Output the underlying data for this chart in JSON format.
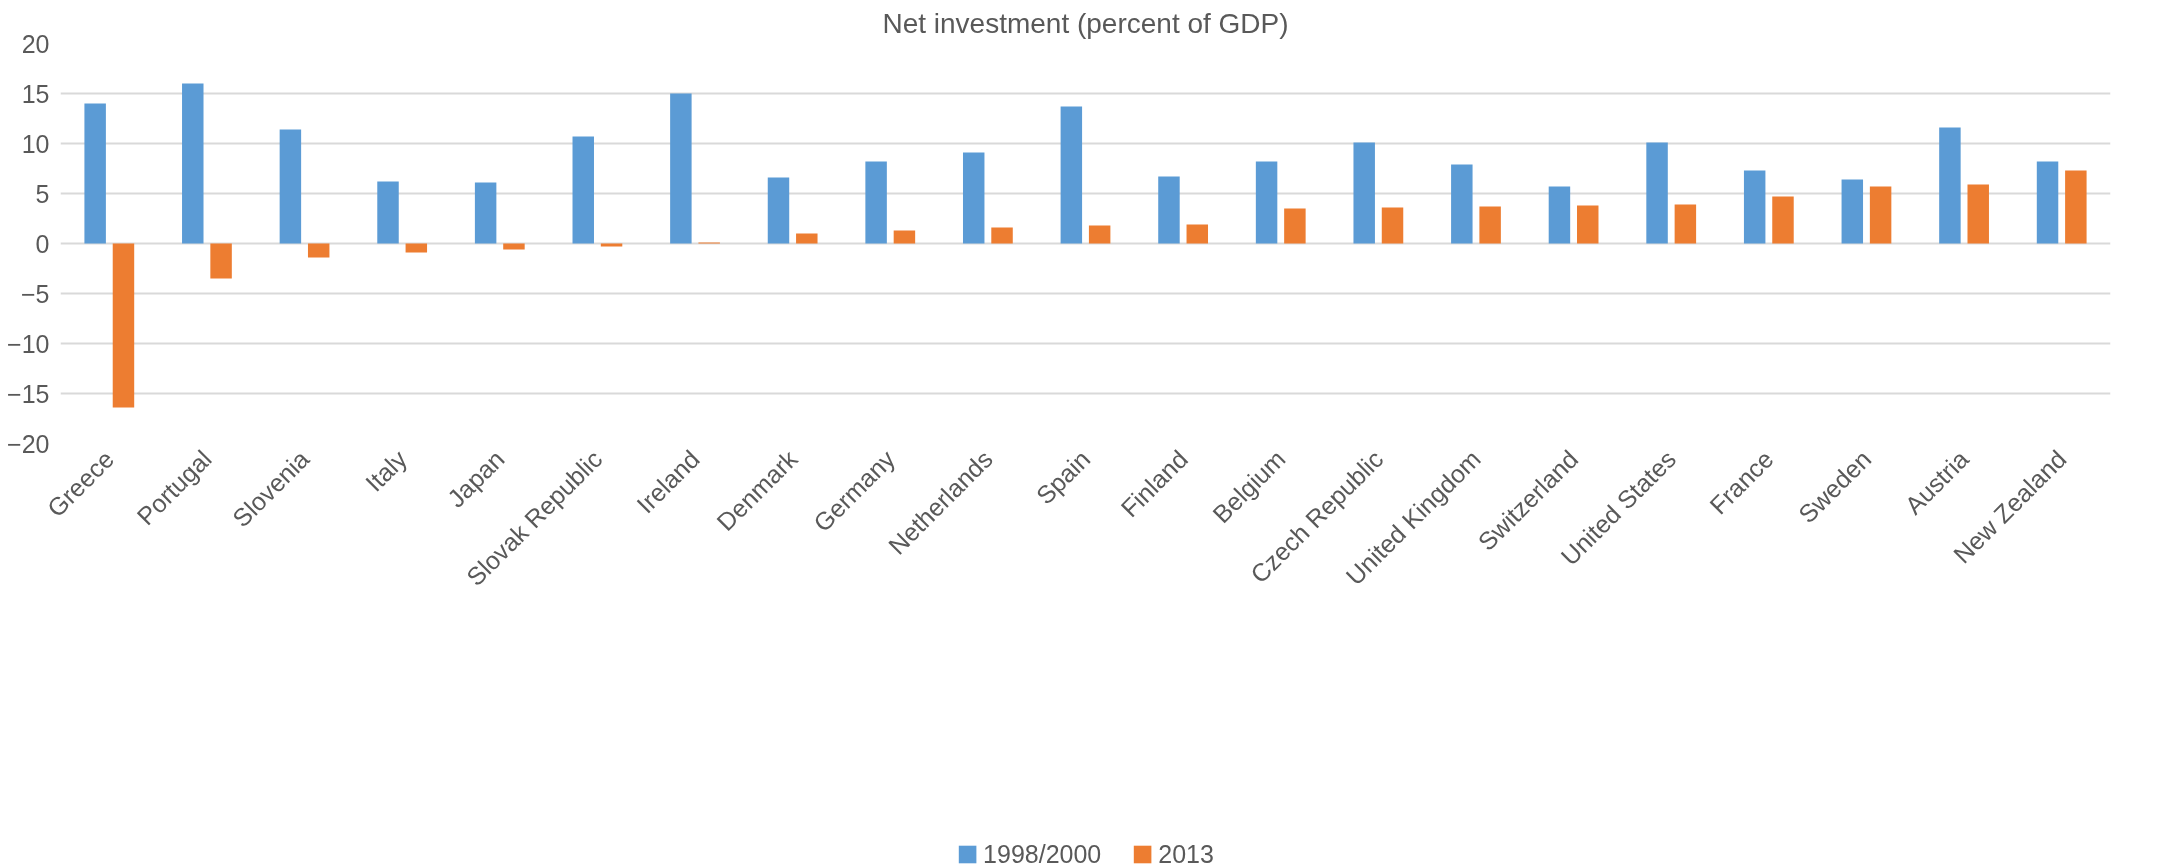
{
  "chart_data": {
    "type": "bar",
    "title": "Net investment (percent of GDP)",
    "categories": [
      "Greece",
      "Portugal",
      "Slovenia",
      "Italy",
      "Japan",
      "Slovak Republic",
      "Ireland",
      "Denmark",
      "Germany",
      "Netherlands",
      "Spain",
      "Finland",
      "Belgium",
      "Czech Republic",
      "United Kingdom",
      "Switzerland",
      "United States",
      "France",
      "Sweden",
      "Austria",
      "New Zealand"
    ],
    "series": [
      {
        "name": "1998/2000",
        "color": "#5b9bd5",
        "values": [
          14.0,
          16.0,
          11.4,
          6.2,
          6.1,
          10.7,
          15.0,
          6.6,
          8.2,
          9.1,
          13.7,
          6.7,
          8.2,
          10.1,
          7.9,
          5.7,
          10.1,
          7.3,
          6.4,
          11.6,
          8.2
        ]
      },
      {
        "name": "2013",
        "color": "#ed7d31",
        "values": [
          -16.4,
          -3.5,
          -1.4,
          -0.9,
          -0.6,
          -0.3,
          0.1,
          1.0,
          1.3,
          1.6,
          1.8,
          1.9,
          3.5,
          3.6,
          3.7,
          3.8,
          3.9,
          4.7,
          5.7,
          5.9,
          7.3
        ]
      }
    ],
    "ylim": [
      -20,
      20
    ],
    "yticks": [
      -20,
      -15,
      -10,
      -5,
      0,
      5,
      10,
      15,
      20
    ],
    "grid": "y",
    "legend": "bottom"
  }
}
